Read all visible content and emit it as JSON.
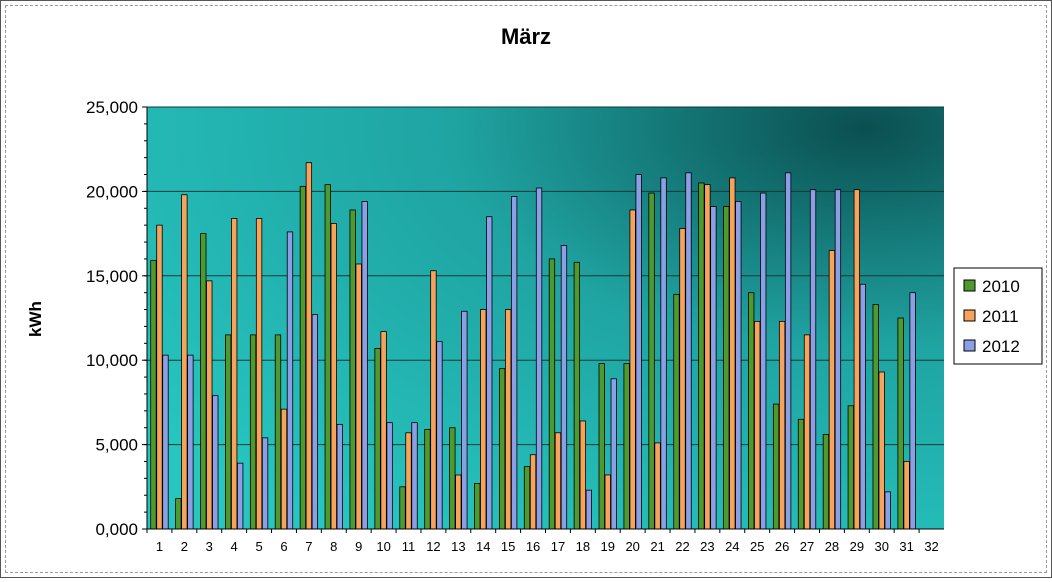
{
  "chart_data": {
    "type": "bar",
    "title": "März",
    "xlabel": "",
    "ylabel": "kWh",
    "ylim": [
      0,
      25
    ],
    "y_ticks": [
      "0,000",
      "5,000",
      "10,000",
      "15,000",
      "20,000",
      "25,000"
    ],
    "categories": [
      "1",
      "2",
      "3",
      "4",
      "5",
      "6",
      "7",
      "8",
      "9",
      "10",
      "11",
      "12",
      "13",
      "14",
      "15",
      "16",
      "17",
      "18",
      "19",
      "20",
      "21",
      "22",
      "23",
      "24",
      "25",
      "26",
      "27",
      "28",
      "29",
      "30",
      "31",
      "32"
    ],
    "grid": true,
    "legend_position": "right",
    "series": [
      {
        "name": "2010",
        "color": "#4f9a2e",
        "values": [
          15.9,
          1.8,
          17.5,
          11.5,
          11.5,
          11.5,
          20.3,
          20.4,
          18.9,
          10.7,
          2.5,
          5.9,
          6.0,
          2.7,
          9.5,
          3.7,
          16.0,
          15.8,
          9.8,
          9.8,
          19.9,
          13.9,
          20.5,
          19.1,
          14.0,
          7.4,
          6.5,
          5.6,
          7.3,
          13.3,
          12.5,
          null
        ]
      },
      {
        "name": "2011",
        "color": "#f7a35c",
        "values": [
          18.0,
          19.8,
          14.7,
          18.4,
          18.4,
          7.1,
          21.7,
          18.1,
          15.7,
          11.7,
          5.7,
          15.3,
          3.2,
          13.0,
          13.0,
          4.4,
          5.7,
          6.4,
          3.2,
          18.9,
          5.1,
          17.8,
          20.4,
          20.8,
          12.3,
          12.3,
          11.5,
          16.5,
          20.1,
          9.3,
          4.0,
          null
        ]
      },
      {
        "name": "2012",
        "color": "#8b9fe6",
        "values": [
          10.3,
          10.3,
          7.9,
          3.9,
          5.4,
          17.6,
          12.7,
          6.2,
          19.4,
          6.3,
          6.3,
          11.1,
          12.9,
          18.5,
          19.7,
          20.2,
          16.8,
          2.3,
          8.9,
          21.0,
          20.8,
          21.1,
          19.1,
          19.4,
          19.9,
          21.1,
          20.1,
          20.1,
          14.5,
          2.2,
          14.0,
          null
        ]
      }
    ]
  }
}
